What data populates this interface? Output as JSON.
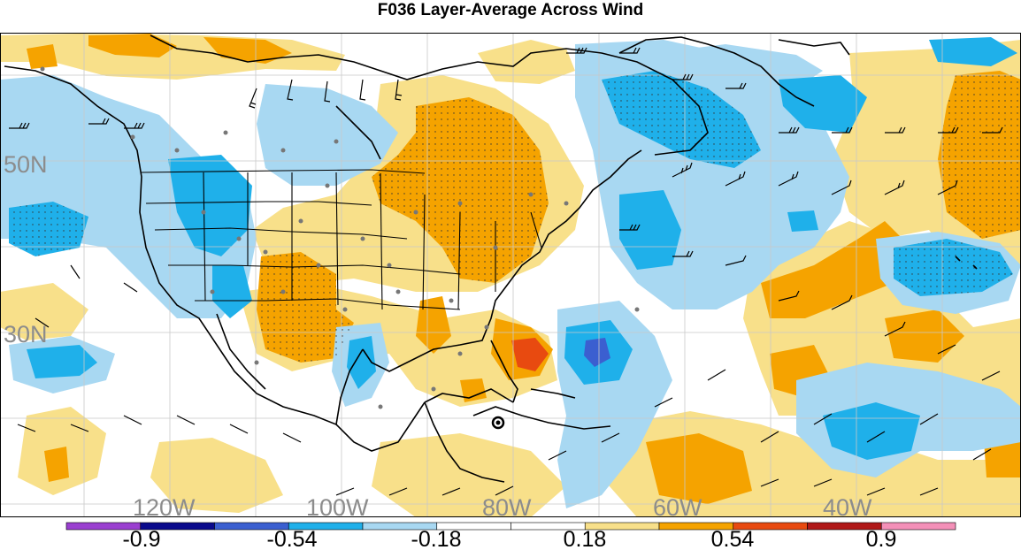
{
  "title": "F036 Layer-Average Across Wind",
  "latitude_labels": [
    "50N",
    "30N"
  ],
  "longitude_labels": [
    "120W",
    "100W",
    "80W",
    "60W",
    "40W"
  ],
  "colorbar": {
    "labels": [
      "-0.9",
      "-0.54",
      "-0.18",
      "0.18",
      "0.54",
      "0.9"
    ],
    "colors": [
      "#9a3fd0",
      "#0a0a8c",
      "#3b5fd0",
      "#1fb0ea",
      "#a8d8f2",
      "#ffffff",
      "#ffffff",
      "#f8e08a",
      "#f5a300",
      "#e84a10",
      "#b01818",
      "#f490b8"
    ]
  },
  "legend_colors": {
    "strong_negative": "#3b5fd0",
    "negative": "#1fb0ea",
    "weak_negative": "#a8d8f2",
    "neutral": "#ffffff",
    "weak_positive": "#f8e08a",
    "positive": "#f5a300",
    "strong_positive": "#e84a10"
  }
}
